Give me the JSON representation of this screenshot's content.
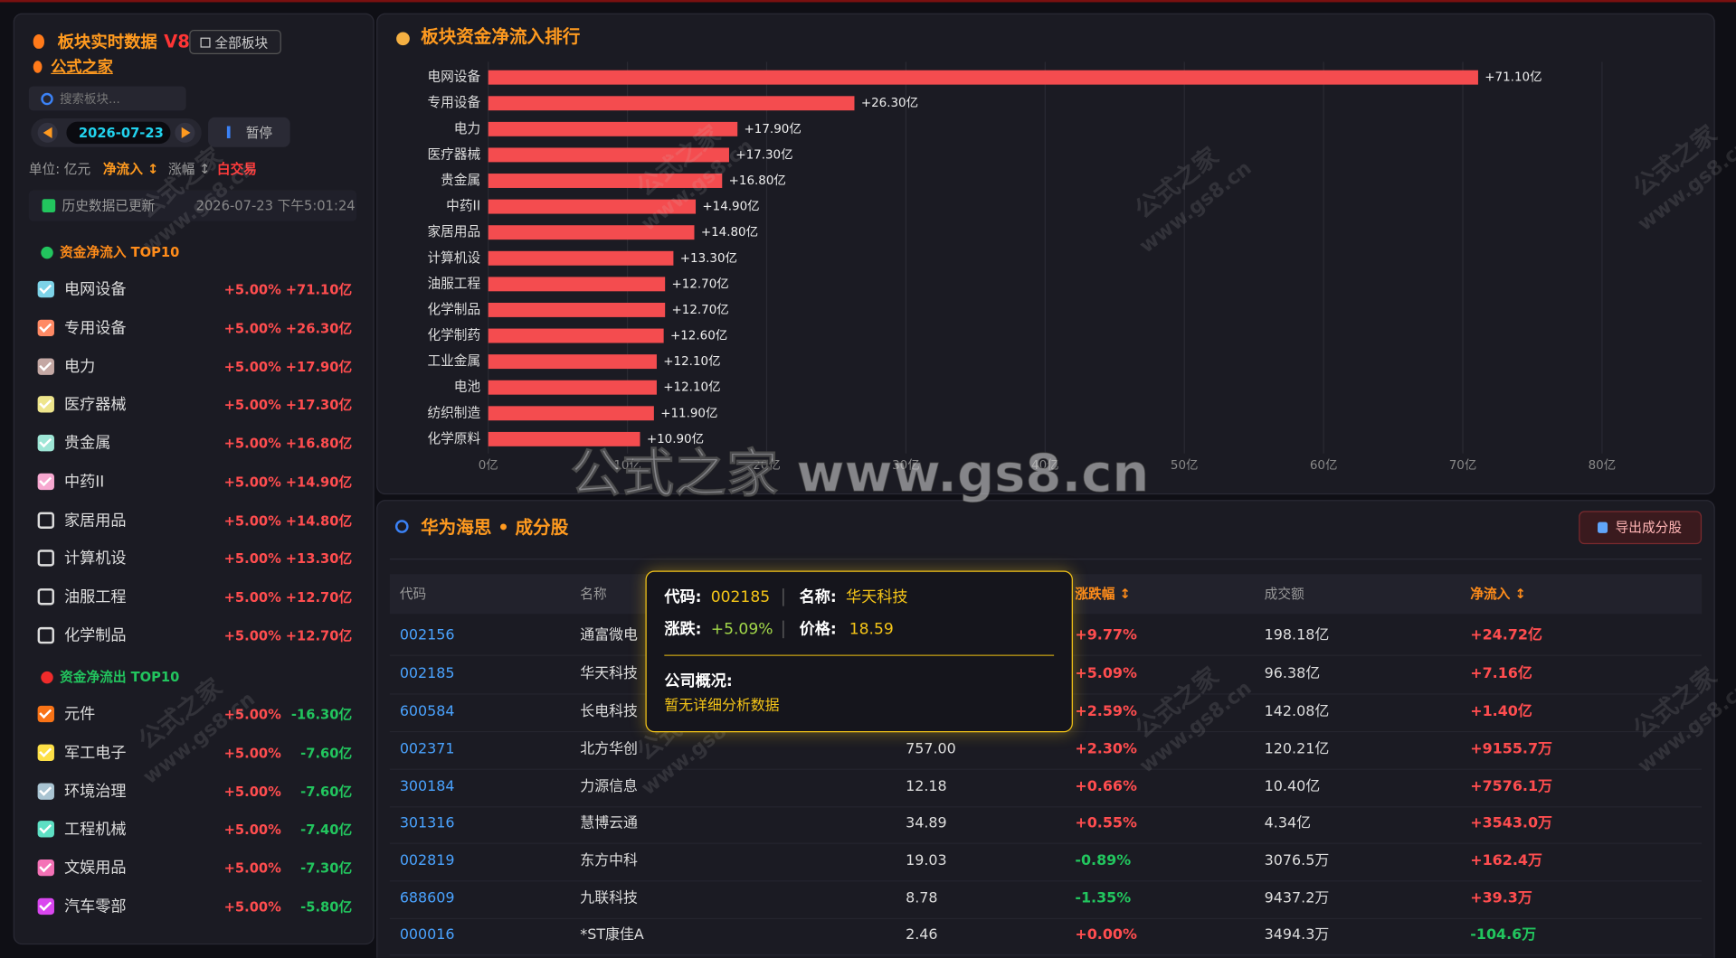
{
  "header": {
    "title": "板块实时数据",
    "version": "V8",
    "all_button": "全部板块",
    "subtitle": "公式之家"
  },
  "controls": {
    "search_placeholder": "搜索板块...",
    "date": "2026-07-23",
    "pause_button": "暂停",
    "unit": "单位: 亿元",
    "sort_flow": "净流入 ↕",
    "sort_change": "涨幅 ↕",
    "mode": "白交易",
    "history_label": "历史数据已更新",
    "timestamp": "2026-07-23 下午5:01:24"
  },
  "inflow": {
    "title": "资金净流入 TOP10",
    "items": [
      {
        "name": "电网设备",
        "change": "+5.00%",
        "flow": "+71.10亿",
        "checked": true,
        "color": "#7dd3e8"
      },
      {
        "name": "专用设备",
        "change": "+5.00%",
        "flow": "+26.30亿",
        "checked": true,
        "color": "#ff8a65"
      },
      {
        "name": "电力",
        "change": "+5.00%",
        "flow": "+17.90亿",
        "checked": true,
        "color": "#c4a8a4"
      },
      {
        "name": "医疗器械",
        "change": "+5.00%",
        "flow": "+17.30亿",
        "checked": true,
        "color": "#eee58c"
      },
      {
        "name": "贵金属",
        "change": "+5.00%",
        "flow": "+16.80亿",
        "checked": true,
        "color": "#9ee6d6"
      },
      {
        "name": "中药II",
        "change": "+5.00%",
        "flow": "+14.90亿",
        "checked": true,
        "color": "#f7a8d0"
      },
      {
        "name": "家居用品",
        "change": "+5.00%",
        "flow": "+14.80亿",
        "checked": false
      },
      {
        "name": "计算机设",
        "change": "+5.00%",
        "flow": "+13.30亿",
        "checked": false
      },
      {
        "name": "油服工程",
        "change": "+5.00%",
        "flow": "+12.70亿",
        "checked": false
      },
      {
        "name": "化学制品",
        "change": "+5.00%",
        "flow": "+12.70亿",
        "checked": false
      }
    ]
  },
  "outflow": {
    "title": "资金净流出 TOP10",
    "items": [
      {
        "name": "元件",
        "change": "+5.00%",
        "flow": "-16.30亿",
        "checked": true,
        "color": "#f97316"
      },
      {
        "name": "军工电子",
        "change": "+5.00%",
        "flow": "-7.60亿",
        "checked": true,
        "color": "#fde047"
      },
      {
        "name": "环境治理",
        "change": "+5.00%",
        "flow": "-7.60亿",
        "checked": true,
        "color": "#a9c4d2"
      },
      {
        "name": "工程机械",
        "change": "+5.00%",
        "flow": "-7.40亿",
        "checked": true,
        "color": "#5ee0c4"
      },
      {
        "name": "文娱用品",
        "change": "+5.00%",
        "flow": "-7.30亿",
        "checked": true,
        "color": "#f472b6"
      },
      {
        "name": "汽车零部",
        "change": "+5.00%",
        "flow": "-5.80亿",
        "checked": true,
        "color": "#d946ef"
      }
    ]
  },
  "chart_data": {
    "type": "bar",
    "orientation": "horizontal",
    "title": "板块资金净流入排行",
    "color": "#f44c4f",
    "grid": true,
    "categories": [
      "电网设备",
      "专用设备",
      "电力",
      "医疗器械",
      "贵金属",
      "中药II",
      "家居用品",
      "计算机设",
      "油服工程",
      "化学制品",
      "化学制药",
      "工业金属",
      "电池",
      "纺织制造",
      "化学原料"
    ],
    "values": [
      71.1,
      26.3,
      17.9,
      17.3,
      16.8,
      14.9,
      14.8,
      13.3,
      12.7,
      12.7,
      12.6,
      12.1,
      12.1,
      11.9,
      10.9
    ],
    "value_labels": [
      "+71.10亿",
      "+26.30亿",
      "+17.90亿",
      "+17.30亿",
      "+16.80亿",
      "+14.90亿",
      "+14.80亿",
      "+13.30亿",
      "+12.70亿",
      "+12.70亿",
      "+12.60亿",
      "+12.10亿",
      "+12.10亿",
      "+11.90亿",
      "+10.90亿"
    ],
    "xlim": [
      0,
      80
    ],
    "xticks": [
      {
        "value": 0,
        "label": "0亿"
      },
      {
        "value": 10,
        "label": "10亿"
      },
      {
        "value": 20,
        "label": "20亿"
      },
      {
        "value": 30,
        "label": "30亿"
      },
      {
        "value": 40,
        "label": "40亿"
      },
      {
        "value": 50,
        "label": "50亿"
      },
      {
        "value": 60,
        "label": "60亿"
      },
      {
        "value": 70,
        "label": "70亿"
      },
      {
        "value": 80,
        "label": "80亿"
      }
    ]
  },
  "stocks": {
    "title": "华为海思 • 成分股",
    "export_button": "导出成分股",
    "columns": [
      "代码",
      "名称",
      null,
      "涨跌幅 ↕",
      "成交额",
      "净流入 ↕"
    ],
    "rows": [
      [
        "002156",
        "通富微电",
        null,
        "+9.77%",
        "198.18亿",
        "+24.72亿"
      ],
      [
        "002185",
        "华天科技",
        null,
        "+5.09%",
        "96.38亿",
        "+7.16亿"
      ],
      [
        "600584",
        "长电科技",
        null,
        "+2.59%",
        "142.08亿",
        "+1.40亿"
      ],
      [
        "002371",
        "北方华创",
        "757.00",
        "+2.30%",
        "120.21亿",
        "+9155.7万"
      ],
      [
        "300184",
        "力源信息",
        "12.18",
        "+0.66%",
        "10.40亿",
        "+7576.1万"
      ],
      [
        "301316",
        "慧博云通",
        "34.89",
        "+0.55%",
        "4.34亿",
        "+3543.0万"
      ],
      [
        "002819",
        "东方中科",
        "19.03",
        "-0.89%",
        "3076.5万",
        "+162.4万"
      ],
      [
        "688609",
        "九联科技",
        "8.78",
        "-1.35%",
        "9437.2万",
        "+39.3万"
      ],
      [
        "000016",
        "*ST康佳A",
        "2.46",
        "+0.00%",
        "3494.3万",
        "-104.6万"
      ]
    ]
  },
  "tooltip": {
    "fields": [
      {
        "label": "代码:",
        "value": "002185"
      },
      {
        "label": "名称:",
        "value": "华天科技"
      },
      {
        "label": "涨跌:",
        "value": "+5.09%"
      },
      {
        "label": "价格:",
        "value": "18.59"
      }
    ],
    "section": "公司概况:",
    "note": "暂无详细分析数据"
  },
  "watermark": {
    "main": "公式之家 www.gs8.cn",
    "name": "公式之家",
    "url": "www.gs8.cn"
  }
}
